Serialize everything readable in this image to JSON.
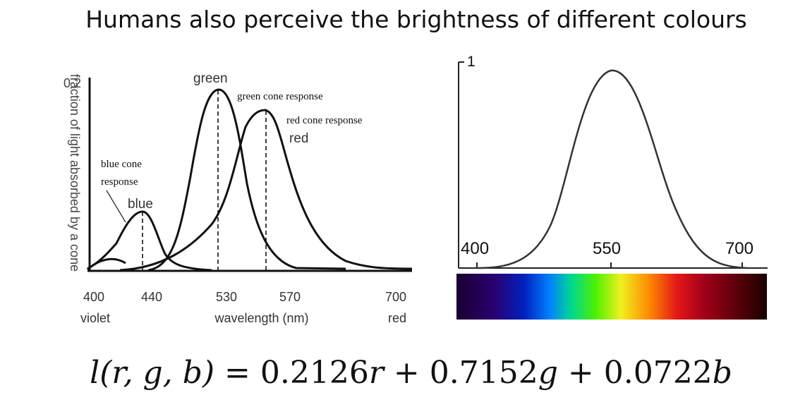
{
  "slide": {
    "title": "Humans also perceive the brightness of different colours",
    "formula": {
      "lhs": "l(r, g, b)",
      "eq": " = ",
      "c1": "0.2126",
      "v1": "r",
      "plus1": " + ",
      "c2": "0.7152",
      "v2": "g",
      "plus2": " + ",
      "c3": "0.0722",
      "v3": "b"
    }
  },
  "chart_data": [
    {
      "type": "line",
      "title": "",
      "ylabel": "fraction of light absorbed by a cone",
      "xlabel": "wavelength (nm)",
      "y_tick_labels": [
        "0.2"
      ],
      "x_tick_labels": [
        {
          "value": "400",
          "sub": "violet"
        },
        {
          "value": "440",
          "sub": ""
        },
        {
          "value": "530",
          "sub": "wavelength (nm)"
        },
        {
          "value": "570",
          "sub": ""
        },
        {
          "value": "700",
          "sub": "red"
        }
      ],
      "series": [
        {
          "name": "blue",
          "annotation": "blue cone response",
          "peak_nm": 440,
          "peak_value": 0.07
        },
        {
          "name": "green",
          "annotation": "green cone response",
          "peak_nm": 530,
          "peak_value": 0.2
        },
        {
          "name": "red",
          "annotation": "red cone response",
          "peak_nm": 570,
          "peak_value": 0.18
        }
      ],
      "legend": "none",
      "grid": false
    },
    {
      "type": "line",
      "title": "",
      "y_tick_labels": [
        "1"
      ],
      "x_tick_labels": [
        "400",
        "550",
        "700"
      ],
      "series": [
        {
          "peak_nm": 555,
          "peak_value": 1.0
        }
      ],
      "color_bar": "visible spectrum from violet to dark red",
      "legend": "none",
      "grid": false
    }
  ],
  "colors": {
    "spectrum": [
      "#1a0030",
      "#2a0070",
      "#0028c8",
      "#0090ff",
      "#00e08a",
      "#58f000",
      "#f0f020",
      "#ff9000",
      "#ff2020",
      "#b00018",
      "#600008",
      "#200000"
    ]
  }
}
